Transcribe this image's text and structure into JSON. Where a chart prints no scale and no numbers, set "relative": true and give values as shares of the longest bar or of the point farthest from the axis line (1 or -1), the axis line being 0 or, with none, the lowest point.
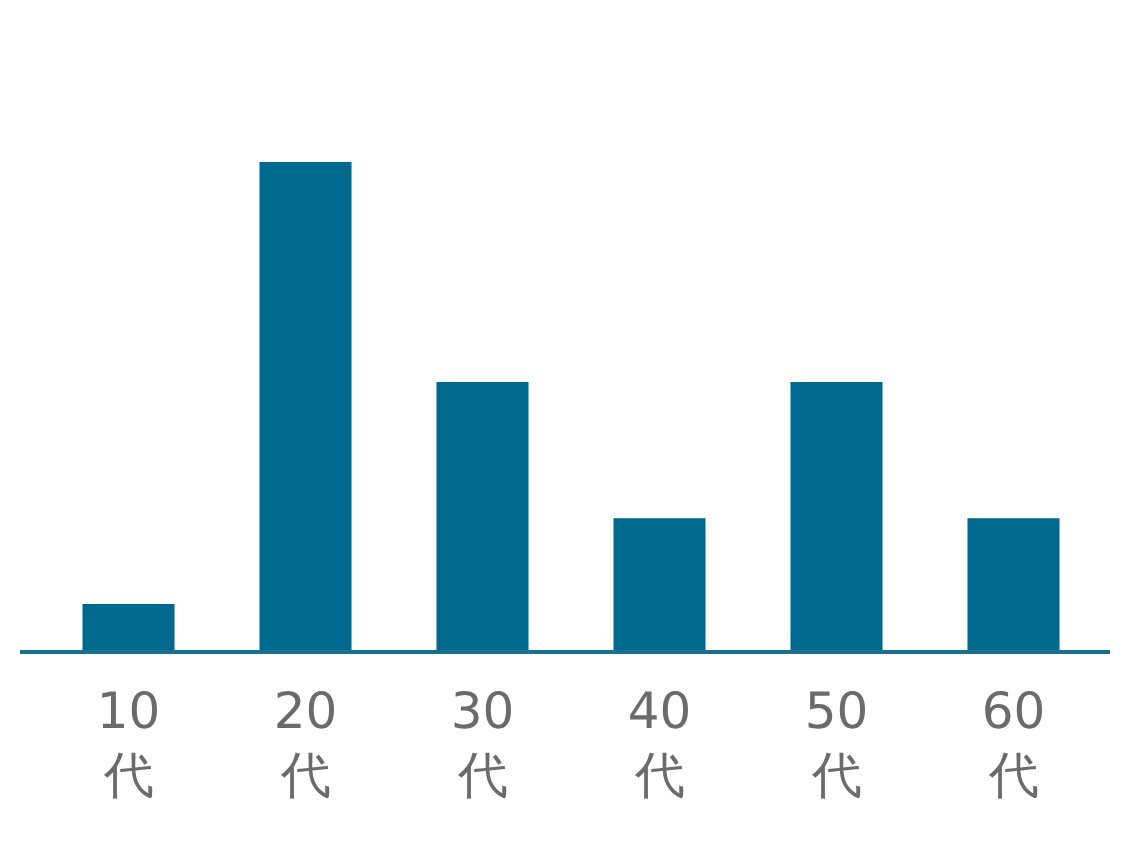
{
  "chart_data": {
    "type": "bar",
    "relative": true,
    "categories": [
      "10代",
      "20代",
      "30代",
      "40代",
      "50代",
      "60代"
    ],
    "values": [
      0.098,
      1,
      0.551,
      0.273,
      0.551,
      0.273
    ],
    "color": "#006a8e"
  }
}
